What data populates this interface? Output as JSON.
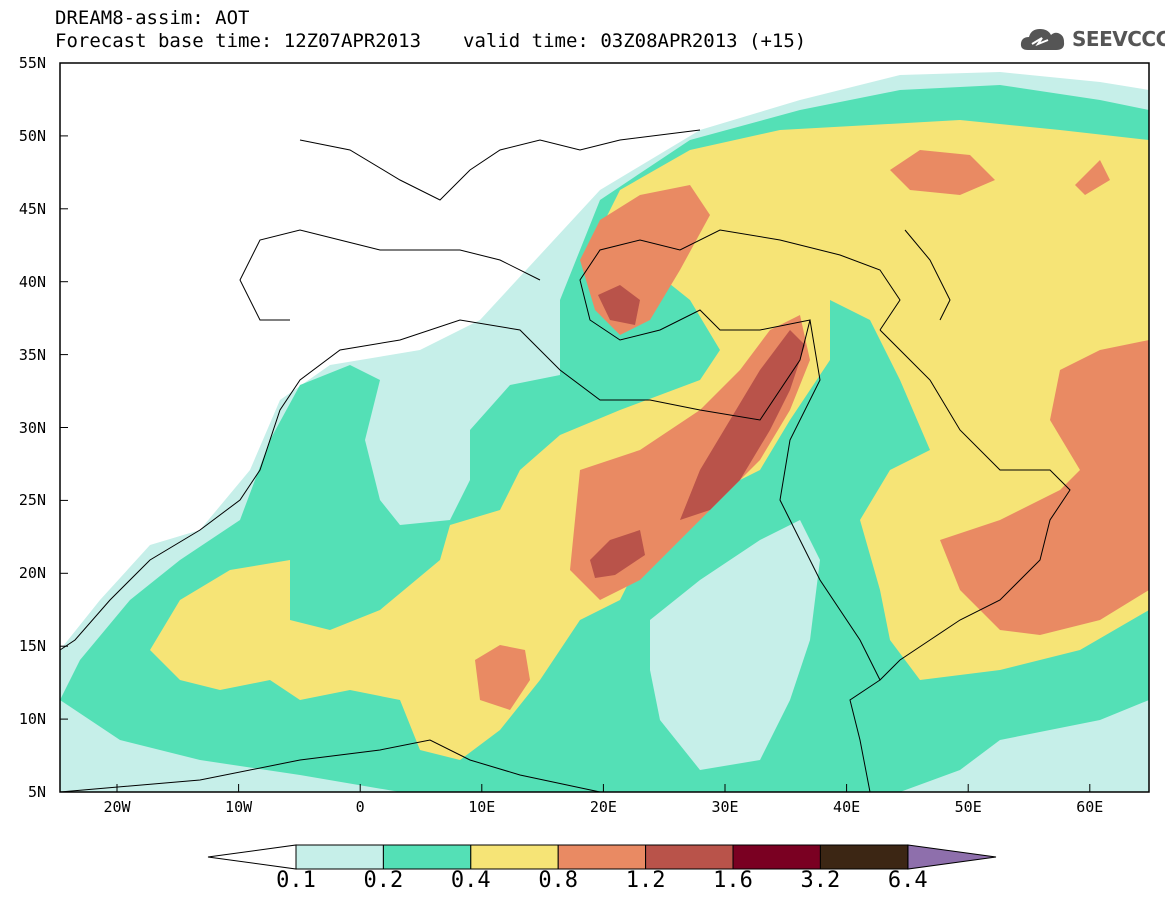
{
  "header": {
    "title": "DREAM8-assim: AOT",
    "base_time": "Forecast base time: 12Z07APR2013",
    "valid_time": "valid time: 03Z08APR2013 (+15)",
    "logo_text": "SEEVCCC"
  },
  "map": {
    "lat_labels": [
      "55N",
      "50N",
      "45N",
      "40N",
      "35N",
      "30N",
      "25N",
      "20N",
      "15N",
      "10N",
      "5N"
    ],
    "lon_labels": [
      "20W",
      "10W",
      "0",
      "10E",
      "20E",
      "30E",
      "40E",
      "50E",
      "60E"
    ]
  },
  "colorbar": {
    "labels": [
      "0.1",
      "0.2",
      "0.4",
      "0.8",
      "1.2",
      "1.6",
      "3.2",
      "6.4"
    ],
    "colors": [
      "#c6efe9",
      "#54e0b6",
      "#f6e476",
      "#e98a63",
      "#b9534a",
      "#7a0022",
      "#3c2614",
      "#8e6fac"
    ]
  },
  "colors": {
    "c01": "#c6efe9",
    "c02": "#54e0b6",
    "c04": "#f6e476",
    "c08": "#e98a63",
    "c12": "#b9534a"
  }
}
